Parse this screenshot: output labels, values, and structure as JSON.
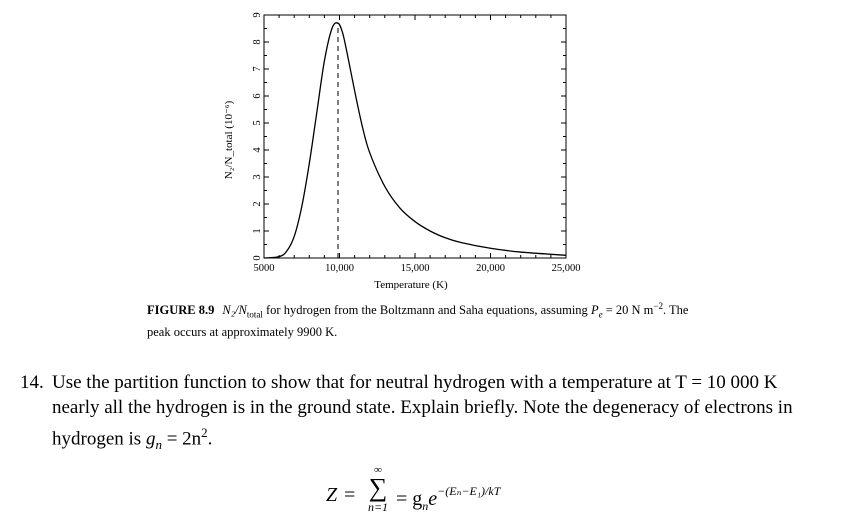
{
  "chart_data": {
    "type": "line",
    "title": "",
    "xlabel": "Temperature (K)",
    "ylabel": "N₂/N_total (10⁻⁶)",
    "xlim": [
      5000,
      25000
    ],
    "ylim": [
      0,
      9
    ],
    "x_ticks": [
      5000,
      10000,
      15000,
      20000,
      25000
    ],
    "x_tick_labels": [
      "5000",
      "10,000",
      "15,000",
      "20,000",
      "25,000"
    ],
    "y_ticks": [
      0,
      1,
      2,
      3,
      4,
      5,
      6,
      7,
      8,
      9
    ],
    "y_tick_labels": [
      "0",
      "1",
      "2",
      "3",
      "4",
      "5",
      "6",
      "7",
      "8",
      "9"
    ],
    "grid": false,
    "series": [
      {
        "x": [
          5000,
          6000,
          6500,
          7000,
          7500,
          8000,
          8500,
          9000,
          9500,
          9900,
          10200,
          10500,
          11000,
          11500,
          12000,
          13000,
          14000,
          15000,
          16000,
          17000,
          18000,
          20000,
          22000,
          25000
        ],
        "values": [
          0.0,
          0.05,
          0.25,
          0.8,
          1.9,
          3.5,
          5.4,
          7.3,
          8.5,
          8.7,
          8.35,
          7.6,
          6.2,
          4.9,
          3.9,
          2.65,
          1.85,
          1.35,
          1.0,
          0.75,
          0.58,
          0.36,
          0.22,
          0.1
        ]
      }
    ],
    "annotations": [
      {
        "type": "vertical-dashed-line",
        "x": 9900
      }
    ]
  },
  "caption": {
    "label": "FIGURE 8.9",
    "text_1": "N₂/N",
    "text_1_sub": "total",
    "text_2": " for hydrogen from the Boltzmann and Saha equations, assuming ",
    "pe_symbol": "P",
    "pe_sub": "e",
    "text_3": " = 20 N m",
    "text_3_sup": "−2",
    "text_4": ". The peak occurs at approximately 9900 K."
  },
  "problem": {
    "number": "14.",
    "text": "Use the partition function to show that for neutral hydrogen with a temperature at T = 10 000 K nearly all the hydrogen is in the ground state. Explain briefly. Note the degeneracy of electrons in hydrogen is ",
    "degeneracy_lhs": "g",
    "degeneracy_lhs_sub": "n",
    "degeneracy_rhs": " = 2n",
    "degeneracy_rhs_sup": "2",
    "period": "."
  },
  "formula": {
    "lhs": "Z",
    "eq": "=",
    "sum_upper": "∞",
    "sum_symbol": "∑",
    "sum_lower": "n=1",
    "rhs_prefix": "= g",
    "rhs_sub": "n",
    "rhs_base": "e",
    "rhs_exponent": "−(Eₙ−E₁)/kT"
  }
}
